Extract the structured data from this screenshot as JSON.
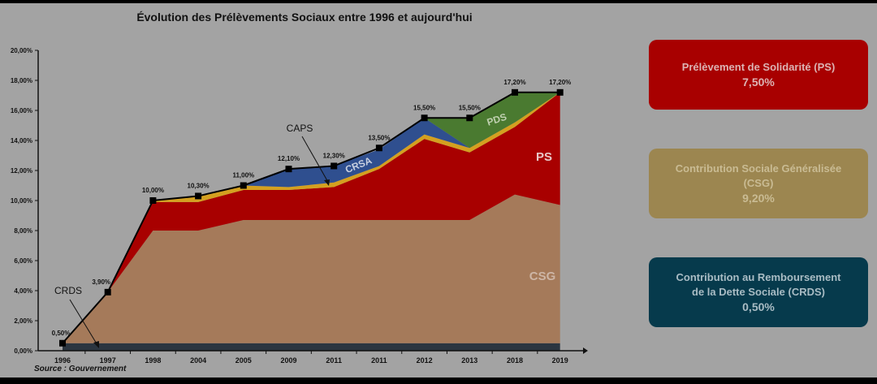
{
  "chart_data": {
    "type": "area",
    "stacked": true,
    "title": "Évolution des Prélèvements Sociaux entre 1996 et aujourd'hui",
    "source": "Source : Gouvernement",
    "categories": [
      "1996",
      "1997",
      "1998",
      "2004",
      "2005",
      "2009",
      "2011",
      "2011",
      "2012",
      "2013",
      "2018",
      "2019"
    ],
    "ylim": [
      0,
      20
    ],
    "yticks": [
      "0,00%",
      "2,00%",
      "4,00%",
      "6,00%",
      "8,00%",
      "10,00%",
      "12,00%",
      "14,00%",
      "16,00%",
      "18,00%",
      "20,00%"
    ],
    "series": [
      {
        "name": "CRDS",
        "color": "#2b3540",
        "values": [
          0.5,
          0.5,
          0.5,
          0.5,
          0.5,
          0.5,
          0.5,
          0.5,
          0.5,
          0.5,
          0.5,
          0.5
        ]
      },
      {
        "name": "CSG",
        "color": "#a57a5a",
        "values": [
          0,
          3.4,
          7.5,
          7.5,
          8.2,
          8.2,
          8.2,
          8.2,
          8.2,
          8.2,
          9.9,
          9.2
        ]
      },
      {
        "name": "PS",
        "color": "#a80000",
        "values": [
          0,
          0,
          1.9,
          1.9,
          2.0,
          2.0,
          2.2,
          3.4,
          5.4,
          4.5,
          4.5,
          7.5
        ]
      },
      {
        "name": "CAPS",
        "color": "#d4a020",
        "values": [
          0,
          0,
          0.1,
          0.4,
          0.3,
          0.2,
          0.3,
          0.2,
          0.3,
          0.3,
          0.3,
          0
        ]
      },
      {
        "name": "CRSA",
        "color": "#2f4f8f",
        "values": [
          0,
          0,
          0,
          0,
          0,
          1.2,
          1.1,
          1.1,
          1.1,
          0,
          0,
          0
        ]
      },
      {
        "name": "PDS",
        "color": "#4a7a30",
        "values": [
          0,
          0,
          0,
          0,
          0,
          0,
          0,
          0,
          0,
          2.0,
          2.0,
          0
        ]
      }
    ],
    "total": {
      "values": [
        0.5,
        3.9,
        10.0,
        10.3,
        11.0,
        12.1,
        12.3,
        13.5,
        15.5,
        15.5,
        17.2,
        17.2
      ],
      "labels": [
        "0,50%",
        "3,90%",
        "10,00%",
        "10,30%",
        "11,00%",
        "12,10%",
        "12,30%",
        "13,50%",
        "15,50%",
        "15,50%",
        "17,20%",
        "17,20%"
      ]
    },
    "annotations": {
      "caps": "CAPS",
      "crds": "CRDS",
      "crsa": "CRSA",
      "pds": "PDS",
      "ps": "PS",
      "csg": "CSG"
    }
  },
  "legend_boxes": {
    "ps": {
      "label": "Prélèvement de Solidarité (PS)",
      "value": "7,50%",
      "color": "#a80000"
    },
    "csg": {
      "label": "Contribution Sociale Généralisée",
      "label2": "(CSG)",
      "value": "9,20%",
      "color": "#9c8650"
    },
    "crds": {
      "label": "Contribution au Remboursement",
      "label2": "de la Dette Sociale (CRDS)",
      "value": "0,50%",
      "color": "#063a4c"
    }
  }
}
